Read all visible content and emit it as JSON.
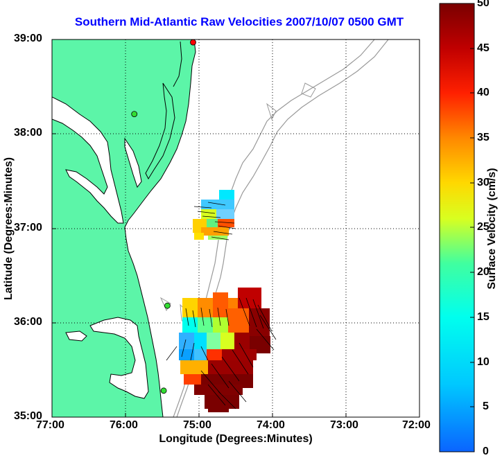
{
  "title": "Southern Mid-Atlantic Raw Velocities 2007/10/07 0500 GMT",
  "axes": {
    "xlabel": "Longitude (Degrees:Minutes)",
    "ylabel": "Latitude (Degrees:Minutes)",
    "x_ticks": [
      "77:00",
      "76:00",
      "75:00",
      "74:00",
      "73:00",
      "72:00"
    ],
    "y_ticks": [
      "39:00",
      "38:00",
      "37:00",
      "36:00",
      "35:00"
    ],
    "xlim": [
      -77,
      -72
    ],
    "ylim": [
      35,
      39
    ],
    "grid": "dotted"
  },
  "colorbar": {
    "label": "Surface Velocity (cm/s)",
    "ticks": [
      "50",
      "45",
      "40",
      "35",
      "30",
      "25",
      "20",
      "15",
      "10",
      "5",
      "0"
    ],
    "range": [
      0,
      50
    ]
  },
  "colors": {
    "land": "#5cf5a8",
    "coastline": "#000000",
    "bathymetry": "#999999",
    "station": "#33dd33",
    "station_alt": "#ff0000",
    "title": "#0000ff"
  },
  "stations": [
    {
      "lon": -75.08,
      "lat": 38.97,
      "color": "red"
    },
    {
      "lon": -75.88,
      "lat": 38.21,
      "color": "green"
    },
    {
      "lon": -75.43,
      "lat": 36.18,
      "color": "green"
    },
    {
      "lon": -75.48,
      "lat": 35.28,
      "color": "green"
    }
  ]
}
